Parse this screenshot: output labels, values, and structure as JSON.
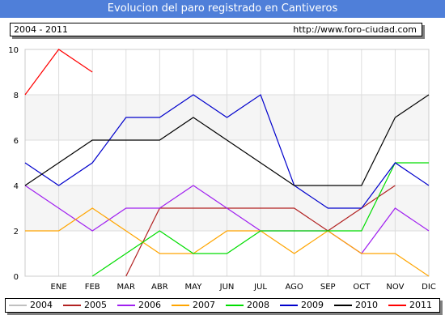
{
  "header": {
    "title": "Evolucion del paro registrado en Cantiveros",
    "range_label": "2004 - 2011",
    "source_url": "http://www.foro-ciudad.com"
  },
  "chart_data": {
    "type": "line",
    "title": "Evolucion del paro registrado en Cantiveros",
    "xlabel": "",
    "ylabel": "",
    "categories": [
      "ENE",
      "FEB",
      "MAR",
      "ABR",
      "MAY",
      "JUN",
      "JUL",
      "AGO",
      "SEP",
      "OCT",
      "NOV",
      "DIC"
    ],
    "ylim": [
      0,
      10
    ],
    "yticks": [
      0,
      2,
      4,
      6,
      8,
      10
    ],
    "grid": true,
    "legend_position": "bottom",
    "series": [
      {
        "name": "2004",
        "color": "#c0c0c0",
        "points": []
      },
      {
        "name": "2005",
        "color": "#b22222",
        "points": [
          [
            3,
            0
          ],
          [
            4,
            3
          ],
          [
            5,
            3
          ],
          [
            6,
            3
          ],
          [
            7,
            3
          ],
          [
            8,
            3
          ],
          [
            9,
            2
          ],
          [
            10,
            3
          ],
          [
            11,
            4
          ]
        ]
      },
      {
        "name": "2006",
        "color": "#a020f0",
        "points": [
          [
            0,
            4
          ],
          [
            1,
            3
          ],
          [
            2,
            2
          ],
          [
            3,
            3
          ],
          [
            4,
            3
          ],
          [
            5,
            4
          ],
          [
            6,
            3
          ],
          [
            7,
            2
          ],
          [
            9,
            2
          ],
          [
            10,
            1
          ],
          [
            11,
            3
          ],
          [
            12,
            2
          ]
        ]
      },
      {
        "name": "2007",
        "color": "#ffa500",
        "points": [
          [
            0,
            2
          ],
          [
            1,
            2
          ],
          [
            2,
            3
          ],
          [
            3,
            2
          ],
          [
            4,
            1
          ],
          [
            5,
            1
          ],
          [
            6,
            2
          ],
          [
            7,
            2
          ],
          [
            8,
            1
          ],
          [
            9,
            2
          ],
          [
            10,
            1
          ],
          [
            11,
            1
          ],
          [
            12,
            0
          ]
        ]
      },
      {
        "name": "2008",
        "color": "#00dd00",
        "points": [
          [
            2,
            0
          ],
          [
            3,
            1
          ],
          [
            4,
            2
          ],
          [
            5,
            1
          ],
          [
            6,
            1
          ],
          [
            7,
            2
          ],
          [
            8,
            2
          ],
          [
            9,
            2
          ],
          [
            10,
            2
          ],
          [
            11,
            5
          ],
          [
            12,
            5
          ]
        ]
      },
      {
        "name": "2009",
        "color": "#0000cc",
        "points": [
          [
            0,
            5
          ],
          [
            1,
            4
          ],
          [
            2,
            5
          ],
          [
            3,
            7
          ],
          [
            4,
            7
          ],
          [
            5,
            8
          ],
          [
            6,
            7
          ],
          [
            7,
            8
          ],
          [
            8,
            4
          ],
          [
            9,
            3
          ],
          [
            10,
            3
          ],
          [
            11,
            5
          ],
          [
            12,
            4
          ]
        ]
      },
      {
        "name": "2010",
        "color": "#000000",
        "points": [
          [
            0,
            4
          ],
          [
            1,
            5
          ],
          [
            2,
            6
          ],
          [
            3,
            6
          ],
          [
            4,
            6
          ],
          [
            5,
            7
          ],
          [
            6,
            6
          ],
          [
            7,
            5
          ],
          [
            8,
            4
          ],
          [
            9,
            4
          ],
          [
            10,
            4
          ],
          [
            11,
            7
          ],
          [
            12,
            8
          ]
        ]
      },
      {
        "name": "2011",
        "color": "#ff0000",
        "points": [
          [
            0,
            8
          ],
          [
            1,
            10
          ],
          [
            2,
            9
          ]
        ]
      }
    ]
  }
}
